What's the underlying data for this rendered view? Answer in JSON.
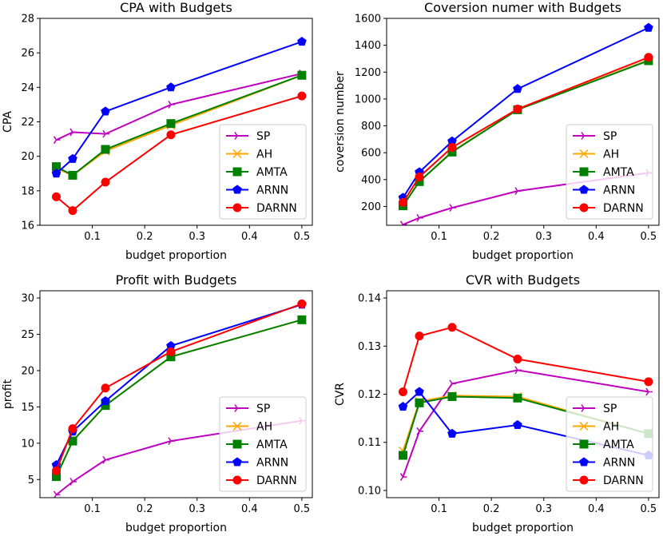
{
  "series_styles": [
    {
      "name": "SP",
      "color": "#bf00bf",
      "marker": "tri-right"
    },
    {
      "name": "AH",
      "color": "#ffa500",
      "marker": "x"
    },
    {
      "name": "AMTA",
      "color": "#008000",
      "marker": "square"
    },
    {
      "name": "ARNN",
      "color": "#0000ff",
      "marker": "pentagon"
    },
    {
      "name": "DARNN",
      "color": "#ff0000",
      "marker": "circle"
    }
  ],
  "chart_data": [
    {
      "type": "line",
      "title": "CPA with Budgets",
      "xlabel": "budget proportion",
      "ylabel": "CPA",
      "xlim": [
        0.0,
        0.52
      ],
      "ylim": [
        16,
        28
      ],
      "xticks": [
        0.1,
        0.2,
        0.3,
        0.4,
        0.5
      ],
      "xtick_labels": [
        "0.1",
        "0.2",
        "0.3",
        "0.4",
        "0.5"
      ],
      "yticks": [
        16,
        18,
        20,
        22,
        24,
        26,
        28
      ],
      "ytick_labels": [
        "16",
        "18",
        "20",
        "22",
        "24",
        "26",
        "28"
      ],
      "legend": "lower-right",
      "x": [
        0.03125,
        0.0625,
        0.125,
        0.25,
        0.5
      ],
      "series": [
        {
          "name": "SP",
          "values": [
            20.95,
            21.4,
            21.3,
            23.0,
            24.8
          ]
        },
        {
          "name": "AH",
          "values": [
            19.3,
            18.9,
            20.3,
            21.8,
            24.7
          ]
        },
        {
          "name": "AMTA",
          "values": [
            19.4,
            18.9,
            20.4,
            21.9,
            24.7
          ]
        },
        {
          "name": "ARNN",
          "values": [
            19.0,
            19.85,
            22.6,
            24.0,
            26.65
          ]
        },
        {
          "name": "DARNN",
          "values": [
            17.65,
            16.85,
            18.5,
            21.25,
            23.5
          ]
        }
      ]
    },
    {
      "type": "line",
      "title": "Coversion numer with Budgets",
      "xlabel": "budget proportion",
      "ylabel": "coversion number",
      "xlim": [
        0.0,
        0.52
      ],
      "ylim": [
        60,
        1600
      ],
      "xticks": [
        0.1,
        0.2,
        0.3,
        0.4,
        0.5
      ],
      "xtick_labels": [
        "0.1",
        "0.2",
        "0.3",
        "0.4",
        "0.5"
      ],
      "yticks": [
        200,
        400,
        600,
        800,
        1000,
        1200,
        1400,
        1600
      ],
      "ytick_labels": [
        "200",
        "400",
        "600",
        "800",
        "1000",
        "1200",
        "1400",
        "1600"
      ],
      "legend": "lower-right",
      "x": [
        0.03125,
        0.0625,
        0.125,
        0.25,
        0.5
      ],
      "series": [
        {
          "name": "SP",
          "values": [
            65,
            115,
            190,
            315,
            450
          ]
        },
        {
          "name": "AH",
          "values": [
            205,
            385,
            610,
            920,
            1290
          ]
        },
        {
          "name": "AMTA",
          "values": [
            205,
            385,
            605,
            920,
            1285
          ]
        },
        {
          "name": "ARNN",
          "values": [
            265,
            455,
            685,
            1075,
            1530
          ]
        },
        {
          "name": "DARNN",
          "values": [
            230,
            420,
            640,
            925,
            1310
          ]
        }
      ]
    },
    {
      "type": "line",
      "title": "Profit with Budgets",
      "xlabel": "budget proportion",
      "ylabel": "profit",
      "xlim": [
        0.0,
        0.52
      ],
      "ylim": [
        2.5,
        31
      ],
      "xticks": [
        0.1,
        0.2,
        0.3,
        0.4,
        0.5
      ],
      "xtick_labels": [
        "0.1",
        "0.2",
        "0.3",
        "0.4",
        "0.5"
      ],
      "yticks": [
        5,
        10,
        15,
        20,
        25,
        30
      ],
      "ytick_labels": [
        "5",
        "10",
        "15",
        "20",
        "25",
        "30"
      ],
      "legend": "lower-right",
      "x": [
        0.03125,
        0.0625,
        0.125,
        0.25,
        0.5
      ],
      "series": [
        {
          "name": "SP",
          "values": [
            2.9,
            4.7,
            7.7,
            10.3,
            13.1
          ]
        },
        {
          "name": "AH",
          "values": [
            5.4,
            10.3,
            15.2,
            21.9,
            27.0
          ]
        },
        {
          "name": "AMTA",
          "values": [
            5.4,
            10.3,
            15.2,
            21.9,
            27.0
          ]
        },
        {
          "name": "ARNN",
          "values": [
            7.0,
            11.6,
            15.8,
            23.4,
            29.1
          ]
        },
        {
          "name": "DARNN",
          "values": [
            6.2,
            12.0,
            17.6,
            22.6,
            29.2
          ]
        }
      ]
    },
    {
      "type": "line",
      "title": "CVR with Budgets",
      "xlabel": "budget proportion",
      "ylabel": "CVR",
      "xlim": [
        0.0,
        0.52
      ],
      "ylim": [
        0.0985,
        0.1415
      ],
      "xticks": [
        0.1,
        0.2,
        0.3,
        0.4,
        0.5
      ],
      "xtick_labels": [
        "0.1",
        "0.2",
        "0.3",
        "0.4",
        "0.5"
      ],
      "yticks": [
        0.1,
        0.11,
        0.12,
        0.13,
        0.14
      ],
      "ytick_labels": [
        "0.10",
        "0.11",
        "0.12",
        "0.13",
        "0.14"
      ],
      "legend": "lower-right",
      "x": [
        0.03125,
        0.0625,
        0.125,
        0.25,
        0.5
      ],
      "series": [
        {
          "name": "SP",
          "values": [
            0.1028,
            0.1123,
            0.1222,
            0.125,
            0.1205
          ]
        },
        {
          "name": "AH",
          "values": [
            0.1082,
            0.1185,
            0.1197,
            0.1195,
            0.1118
          ]
        },
        {
          "name": "AMTA",
          "values": [
            0.1073,
            0.1182,
            0.1195,
            0.1192,
            0.1118
          ]
        },
        {
          "name": "ARNN",
          "values": [
            0.1174,
            0.1205,
            0.1118,
            0.1136,
            0.1073
          ]
        },
        {
          "name": "DARNN",
          "values": [
            0.1205,
            0.1321,
            0.1339,
            0.1273,
            0.1226
          ]
        }
      ]
    }
  ]
}
